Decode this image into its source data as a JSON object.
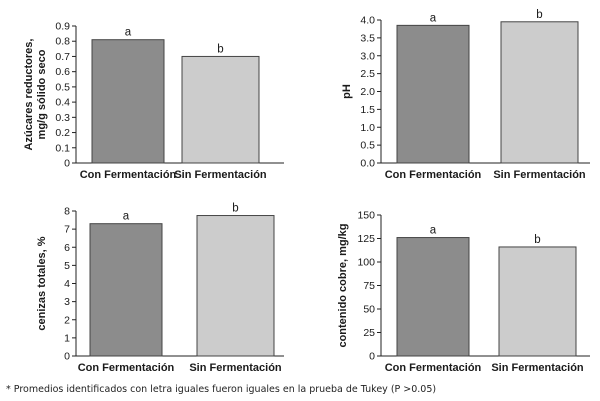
{
  "chart_data": [
    {
      "type": "bar",
      "categories": [
        "Con Fermentación",
        "Sin Fermentación"
      ],
      "values": [
        0.81,
        0.7
      ],
      "labels": [
        "a",
        "b"
      ],
      "ylabel": "Azúcares reductores, mg/g sólido seco",
      "ylim": [
        0,
        0.9
      ],
      "ticks": [
        "0",
        "0.1",
        "0.2",
        "0.3",
        "0.4",
        "0.5",
        "0.6",
        "0.7",
        "0.8",
        "0.9"
      ],
      "colors": [
        "#8c8c8c",
        "#cccccc"
      ]
    },
    {
      "type": "bar",
      "categories": [
        "Con Fermentación",
        "Sin Fermentación"
      ],
      "values": [
        3.85,
        3.95
      ],
      "labels": [
        "a",
        "b"
      ],
      "ylabel": "pH",
      "ylim": [
        0,
        4.0
      ],
      "ticks": [
        "0.0",
        "0.5",
        "1.0",
        "1.5",
        "2.0",
        "2.5",
        "3.0",
        "3.5",
        "4.0"
      ],
      "colors": [
        "#8c8c8c",
        "#cccccc"
      ]
    },
    {
      "type": "bar",
      "categories": [
        "Con Fermentación",
        "Sin Fermentación"
      ],
      "values": [
        7.3,
        7.75
      ],
      "labels": [
        "a",
        "b"
      ],
      "ylabel": "cenizas totales, %",
      "ylim": [
        0,
        8
      ],
      "ticks": [
        "0",
        "1",
        "2",
        "3",
        "4",
        "5",
        "6",
        "7",
        "8"
      ],
      "colors": [
        "#8c8c8c",
        "#cccccc"
      ]
    },
    {
      "type": "bar",
      "categories": [
        "Con Fermentación",
        "Sin Fermentación"
      ],
      "values": [
        126,
        116
      ],
      "labels": [
        "a",
        "b"
      ],
      "ylabel": "contenido cobre, mg/kg",
      "ylim": [
        0,
        150
      ],
      "ticks": [
        "0",
        "25",
        "50",
        "75",
        "100",
        "125",
        "150"
      ],
      "colors": [
        "#8c8c8c",
        "#cccccc"
      ]
    }
  ],
  "footnote": "* Promedios identificados con letra iguales fueron iguales en la prueba de Tukey (P >0.05)"
}
